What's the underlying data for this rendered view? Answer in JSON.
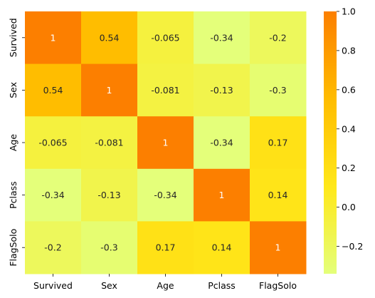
{
  "chart_data": {
    "type": "heatmap",
    "title": "",
    "xlabel": "",
    "ylabel": "",
    "x_categories": [
      "Survived",
      "Sex",
      "Age",
      "Pclass",
      "FlagSolo"
    ],
    "y_categories": [
      "Survived",
      "Sex",
      "Age",
      "Pclass",
      "FlagSolo"
    ],
    "values": [
      [
        1,
        0.54,
        -0.065,
        -0.34,
        -0.2
      ],
      [
        0.54,
        1,
        -0.081,
        -0.13,
        -0.3
      ],
      [
        -0.065,
        -0.081,
        1,
        -0.34,
        0.17
      ],
      [
        -0.34,
        -0.13,
        -0.34,
        1,
        0.14
      ],
      [
        -0.2,
        -0.3,
        0.17,
        0.14,
        1
      ]
    ],
    "cell_labels": [
      [
        "1",
        "0.54",
        "-0.065",
        "-0.34",
        "-0.2"
      ],
      [
        "0.54",
        "1",
        "-0.081",
        "-0.13",
        "-0.3"
      ],
      [
        "-0.065",
        "-0.081",
        "1",
        "-0.34",
        "0.17"
      ],
      [
        "-0.34",
        "-0.13",
        "-0.34",
        "1",
        "0.14"
      ],
      [
        "-0.2",
        "-0.3",
        "0.17",
        "0.14",
        "1"
      ]
    ],
    "colormap": "Wistia",
    "vmin": -0.34,
    "vmax": 1.0,
    "colorbar": {
      "ticks": [
        -0.2,
        0.0,
        0.2,
        0.4,
        0.6,
        0.8,
        1.0
      ],
      "tick_labels": [
        "−0.2",
        "0.0",
        "0.2",
        "0.4",
        "0.6",
        "0.8",
        "1.0"
      ]
    },
    "grid": false,
    "legend": "colorbar-right"
  },
  "colors": {
    "low": "#e4ff7a",
    "mid_low": "#ffe81a",
    "mid_high": "#ffbd00",
    "high": "#fc7f00",
    "annot_dark": "#262626",
    "annot_light": "#ffffff",
    "axis": "#000000"
  }
}
